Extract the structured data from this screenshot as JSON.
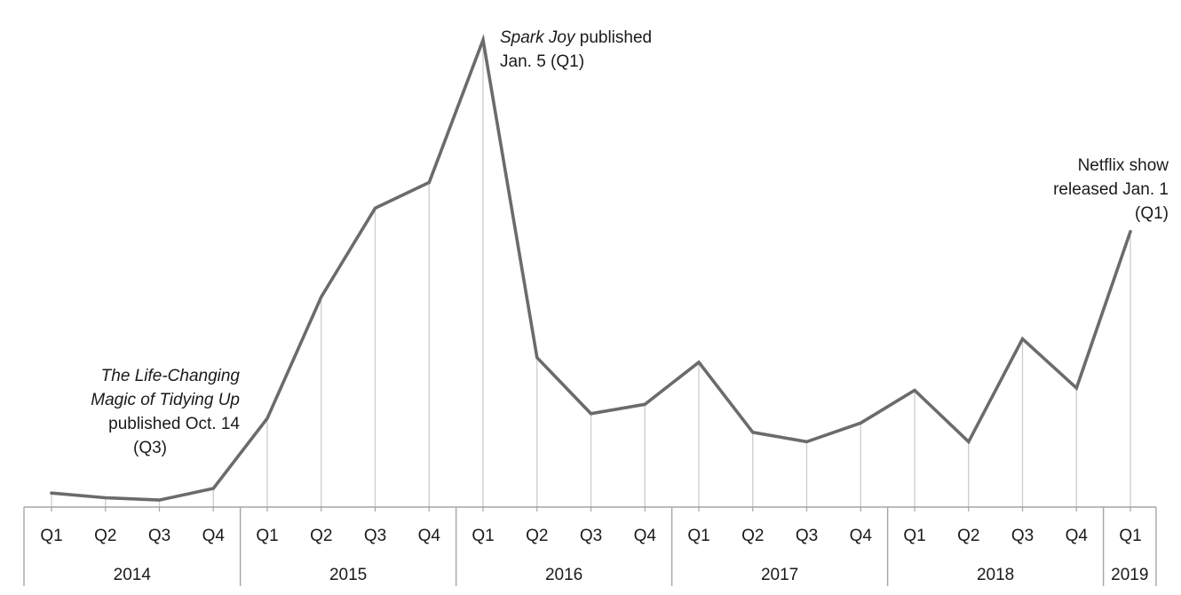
{
  "chart_data": {
    "type": "line",
    "categories": [
      "Q1",
      "Q2",
      "Q3",
      "Q4",
      "Q1",
      "Q2",
      "Q3",
      "Q4",
      "Q1",
      "Q2",
      "Q3",
      "Q4",
      "Q1",
      "Q2",
      "Q3",
      "Q4",
      "Q1",
      "Q2",
      "Q3",
      "Q4",
      "Q1"
    ],
    "years": [
      {
        "label": "2014",
        "quarters": 4
      },
      {
        "label": "2015",
        "quarters": 4
      },
      {
        "label": "2016",
        "quarters": 4
      },
      {
        "label": "2017",
        "quarters": 4
      },
      {
        "label": "2018",
        "quarters": 4
      },
      {
        "label": "2019",
        "quarters": 1
      }
    ],
    "series": [
      {
        "values": [
          3,
          2,
          1.5,
          4,
          19,
          45,
          64,
          69.5,
          100,
          32,
          20,
          22,
          31,
          16,
          14,
          18,
          25,
          14,
          36,
          25.5,
          59
        ]
      }
    ],
    "ylim": [
      0,
      100
    ],
    "color": "#6b6b6b",
    "grid": "vertical drop lines to each point",
    "annotations": [
      {
        "index": 2,
        "lines": [
          {
            "text": "The Life-Changing",
            "italic": true
          },
          {
            "text": "Magic of Tidying Up",
            "italic": true
          },
          {
            "text": "published Oct. 14",
            "italic": false
          },
          {
            "text": "(Q3)",
            "italic": false
          }
        ]
      },
      {
        "index": 8,
        "lines": [
          {
            "parts": [
              {
                "text": "Spark Joy",
                "italic": true
              },
              {
                "text": " published",
                "italic": false
              }
            ]
          },
          {
            "parts": [
              {
                "text": "Jan. 5 (Q1)",
                "italic": false
              }
            ]
          }
        ]
      },
      {
        "index": 20,
        "lines": [
          {
            "text": "Netflix show",
            "italic": false
          },
          {
            "text": "released Jan. 1",
            "italic": false
          },
          {
            "text": "(Q1)",
            "italic": false
          }
        ]
      }
    ]
  }
}
